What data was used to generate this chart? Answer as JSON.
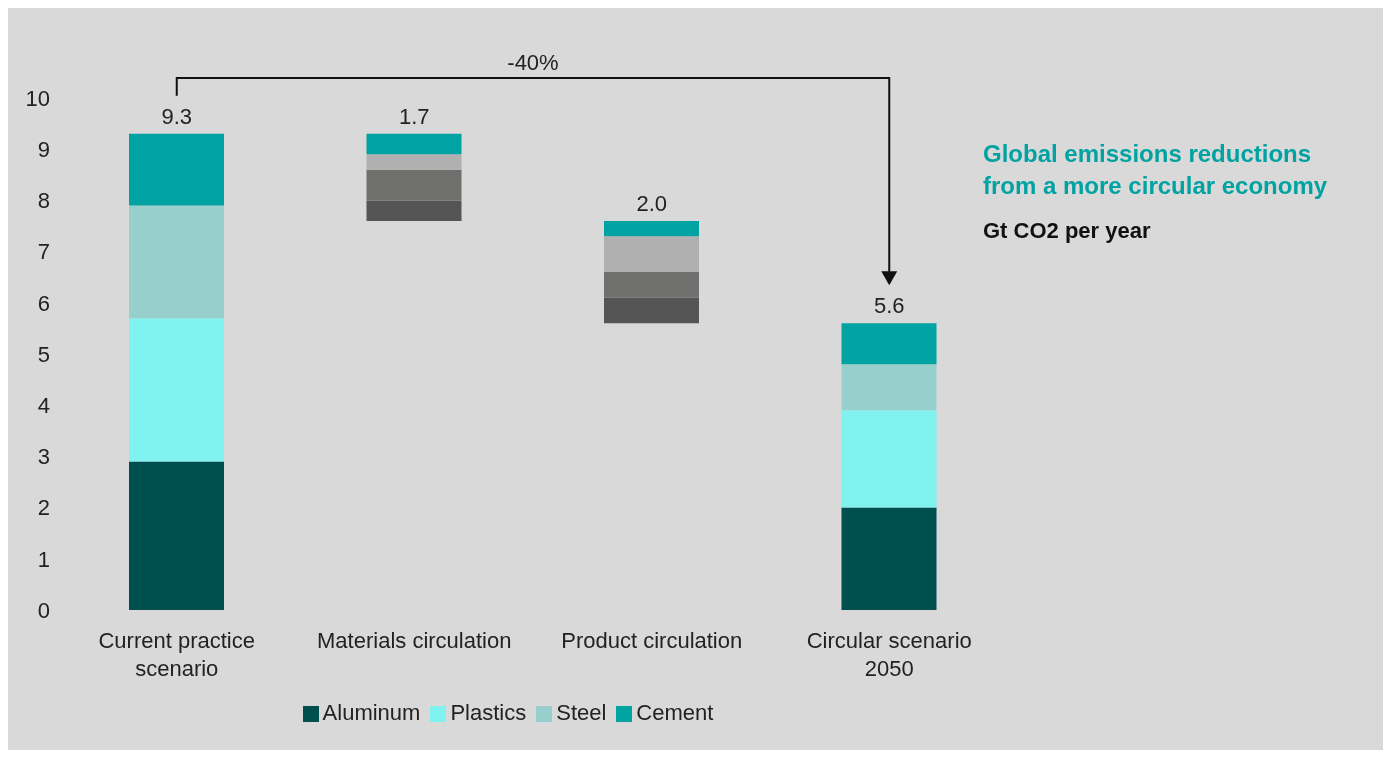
{
  "chart_data": {
    "type": "bar",
    "title": "Global emissions reductions from a more circular economy",
    "subtitle": "Gt CO2 per year",
    "categories": [
      "Current practice scenario",
      "Materials circulation",
      "Product circulation",
      "Circular scenario 2050"
    ],
    "series": [
      {
        "name": "Aluminum",
        "color": "#004f4f",
        "colors": [
          "#004f4f",
          "#555555",
          "#555555",
          "#004f4f"
        ],
        "base": [
          0,
          7.6,
          5.6,
          0
        ],
        "values": [
          2.9,
          0.4,
          0.5,
          2.0
        ]
      },
      {
        "name": "Plastics",
        "color": "#80f2ef",
        "colors": [
          "#80f2ef",
          "#6f6f6e",
          "#6f6f6e",
          "#80f2ef"
        ],
        "base": [
          2.9,
          8.0,
          6.1,
          2.0
        ],
        "values": [
          2.8,
          0.6,
          0.5,
          1.9
        ]
      },
      {
        "name": "Steel",
        "color": "#96cfcc",
        "colors": [
          "#96cfcc",
          "#b0b0b0",
          "#b0b0b0",
          "#96cfcc"
        ],
        "base": [
          5.7,
          8.6,
          6.6,
          3.9
        ],
        "values": [
          2.2,
          0.3,
          0.7,
          0.9
        ]
      },
      {
        "name": "Cement",
        "color": "#00a3a1",
        "colors": [
          "#00a3a1",
          "#00a3a1",
          "#00a3a1",
          "#00a3a1"
        ],
        "base": [
          7.9,
          8.9,
          7.3,
          4.8
        ],
        "values": [
          1.4,
          0.4,
          0.3,
          0.8
        ]
      }
    ],
    "ylim": [
      0,
      10
    ],
    "yticks": [
      0,
      1,
      2,
      3,
      4,
      5,
      6,
      7,
      8,
      9,
      10
    ],
    "grid": false,
    "legend": "bottom",
    "annotations": [
      "-40%",
      {
        "text": "9.3",
        "x": "Current practice scenario",
        "y": 9.3
      },
      {
        "text": "1.7",
        "x": "Materials circulation",
        "y": 9.3
      },
      {
        "text": "2.0",
        "x": "Product circulation",
        "y": 7.6
      },
      {
        "text": "5.6",
        "x": "Circular scenario 2050",
        "y": 5.6
      }
    ]
  }
}
